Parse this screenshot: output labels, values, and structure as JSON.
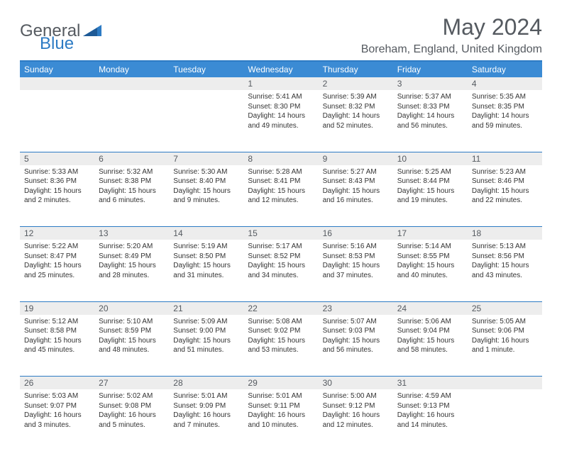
{
  "logo": {
    "part1": "General",
    "part2": "Blue"
  },
  "title": "May 2024",
  "subtitle": "Boreham, England, United Kingdom",
  "colors": {
    "header_bg": "#3b8bd4",
    "border": "#2d7bc4",
    "daynum_bg": "#ededed",
    "text": "#333333",
    "text_muted": "#555a60"
  },
  "day_headers": [
    "Sunday",
    "Monday",
    "Tuesday",
    "Wednesday",
    "Thursday",
    "Friday",
    "Saturday"
  ],
  "weeks": [
    [
      null,
      null,
      null,
      {
        "n": "1",
        "sr": "5:41 AM",
        "ss": "8:30 PM",
        "dl": "14 hours and 49 minutes."
      },
      {
        "n": "2",
        "sr": "5:39 AM",
        "ss": "8:32 PM",
        "dl": "14 hours and 52 minutes."
      },
      {
        "n": "3",
        "sr": "5:37 AM",
        "ss": "8:33 PM",
        "dl": "14 hours and 56 minutes."
      },
      {
        "n": "4",
        "sr": "5:35 AM",
        "ss": "8:35 PM",
        "dl": "14 hours and 59 minutes."
      }
    ],
    [
      {
        "n": "5",
        "sr": "5:33 AM",
        "ss": "8:36 PM",
        "dl": "15 hours and 2 minutes."
      },
      {
        "n": "6",
        "sr": "5:32 AM",
        "ss": "8:38 PM",
        "dl": "15 hours and 6 minutes."
      },
      {
        "n": "7",
        "sr": "5:30 AM",
        "ss": "8:40 PM",
        "dl": "15 hours and 9 minutes."
      },
      {
        "n": "8",
        "sr": "5:28 AM",
        "ss": "8:41 PM",
        "dl": "15 hours and 12 minutes."
      },
      {
        "n": "9",
        "sr": "5:27 AM",
        "ss": "8:43 PM",
        "dl": "15 hours and 16 minutes."
      },
      {
        "n": "10",
        "sr": "5:25 AM",
        "ss": "8:44 PM",
        "dl": "15 hours and 19 minutes."
      },
      {
        "n": "11",
        "sr": "5:23 AM",
        "ss": "8:46 PM",
        "dl": "15 hours and 22 minutes."
      }
    ],
    [
      {
        "n": "12",
        "sr": "5:22 AM",
        "ss": "8:47 PM",
        "dl": "15 hours and 25 minutes."
      },
      {
        "n": "13",
        "sr": "5:20 AM",
        "ss": "8:49 PM",
        "dl": "15 hours and 28 minutes."
      },
      {
        "n": "14",
        "sr": "5:19 AM",
        "ss": "8:50 PM",
        "dl": "15 hours and 31 minutes."
      },
      {
        "n": "15",
        "sr": "5:17 AM",
        "ss": "8:52 PM",
        "dl": "15 hours and 34 minutes."
      },
      {
        "n": "16",
        "sr": "5:16 AM",
        "ss": "8:53 PM",
        "dl": "15 hours and 37 minutes."
      },
      {
        "n": "17",
        "sr": "5:14 AM",
        "ss": "8:55 PM",
        "dl": "15 hours and 40 minutes."
      },
      {
        "n": "18",
        "sr": "5:13 AM",
        "ss": "8:56 PM",
        "dl": "15 hours and 43 minutes."
      }
    ],
    [
      {
        "n": "19",
        "sr": "5:12 AM",
        "ss": "8:58 PM",
        "dl": "15 hours and 45 minutes."
      },
      {
        "n": "20",
        "sr": "5:10 AM",
        "ss": "8:59 PM",
        "dl": "15 hours and 48 minutes."
      },
      {
        "n": "21",
        "sr": "5:09 AM",
        "ss": "9:00 PM",
        "dl": "15 hours and 51 minutes."
      },
      {
        "n": "22",
        "sr": "5:08 AM",
        "ss": "9:02 PM",
        "dl": "15 hours and 53 minutes."
      },
      {
        "n": "23",
        "sr": "5:07 AM",
        "ss": "9:03 PM",
        "dl": "15 hours and 56 minutes."
      },
      {
        "n": "24",
        "sr": "5:06 AM",
        "ss": "9:04 PM",
        "dl": "15 hours and 58 minutes."
      },
      {
        "n": "25",
        "sr": "5:05 AM",
        "ss": "9:06 PM",
        "dl": "16 hours and 1 minute."
      }
    ],
    [
      {
        "n": "26",
        "sr": "5:03 AM",
        "ss": "9:07 PM",
        "dl": "16 hours and 3 minutes."
      },
      {
        "n": "27",
        "sr": "5:02 AM",
        "ss": "9:08 PM",
        "dl": "16 hours and 5 minutes."
      },
      {
        "n": "28",
        "sr": "5:01 AM",
        "ss": "9:09 PM",
        "dl": "16 hours and 7 minutes."
      },
      {
        "n": "29",
        "sr": "5:01 AM",
        "ss": "9:11 PM",
        "dl": "16 hours and 10 minutes."
      },
      {
        "n": "30",
        "sr": "5:00 AM",
        "ss": "9:12 PM",
        "dl": "16 hours and 12 minutes."
      },
      {
        "n": "31",
        "sr": "4:59 AM",
        "ss": "9:13 PM",
        "dl": "16 hours and 14 minutes."
      },
      null
    ]
  ],
  "labels": {
    "sunrise": "Sunrise:",
    "sunset": "Sunset:",
    "daylight": "Daylight:"
  }
}
